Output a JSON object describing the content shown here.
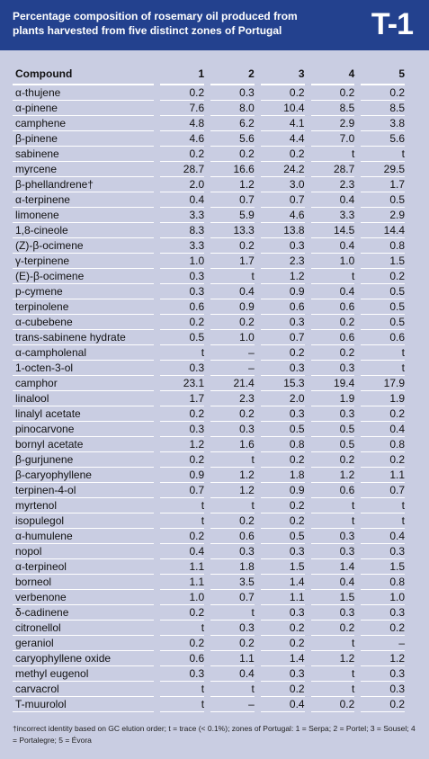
{
  "header": {
    "title": "Percentage composition of rosemary oil produced from plants harvested from five distinct zones of Portugal",
    "badge": "T-1"
  },
  "table": {
    "columns": [
      "Compound",
      "1",
      "2",
      "3",
      "4",
      "5"
    ],
    "rows": [
      [
        "α-thujene",
        "0.2",
        "0.3",
        "0.2",
        "0.2",
        "0.2"
      ],
      [
        "α-pinene",
        "7.6",
        "8.0",
        "10.4",
        "8.5",
        "8.5"
      ],
      [
        "camphene",
        "4.8",
        "6.2",
        "4.1",
        "2.9",
        "3.8"
      ],
      [
        "β-pinene",
        "4.6",
        "5.6",
        "4.4",
        "7.0",
        "5.6"
      ],
      [
        "sabinene",
        "0.2",
        "0.2",
        "0.2",
        "t",
        "t"
      ],
      [
        "myrcene",
        "28.7",
        "16.6",
        "24.2",
        "28.7",
        "29.5"
      ],
      [
        "β-phellandrene†",
        "2.0",
        "1.2",
        "3.0",
        "2.3",
        "1.7"
      ],
      [
        "α-terpinene",
        "0.4",
        "0.7",
        "0.7",
        "0.4",
        "0.5"
      ],
      [
        "limonene",
        "3.3",
        "5.9",
        "4.6",
        "3.3",
        "2.9"
      ],
      [
        "1,8-cineole",
        "8.3",
        "13.3",
        "13.8",
        "14.5",
        "14.4"
      ],
      [
        "(Z)-β-ocimene",
        "3.3",
        "0.2",
        "0.3",
        "0.4",
        "0.8"
      ],
      [
        "γ-terpinene",
        "1.0",
        "1.7",
        "2.3",
        "1.0",
        "1.5"
      ],
      [
        "(E)-β-ocimene",
        "0.3",
        "t",
        "1.2",
        "t",
        "0.2"
      ],
      [
        "p-cymene",
        "0.3",
        "0.4",
        "0.9",
        "0.4",
        "0.5"
      ],
      [
        "terpinolene",
        "0.6",
        "0.9",
        "0.6",
        "0.6",
        "0.5"
      ],
      [
        "α-cubebene",
        "0.2",
        "0.2",
        "0.3",
        "0.2",
        "0.5"
      ],
      [
        "trans-sabinene hydrate",
        "0.5",
        "1.0",
        "0.7",
        "0.6",
        "0.6"
      ],
      [
        "α-campholenal",
        "t",
        "–",
        "0.2",
        "0.2",
        "t"
      ],
      [
        "1-octen-3-ol",
        "0.3",
        "–",
        "0.3",
        "0.3",
        "t"
      ],
      [
        "camphor",
        "23.1",
        "21.4",
        "15.3",
        "19.4",
        "17.9"
      ],
      [
        "linalool",
        "1.7",
        "2.3",
        "2.0",
        "1.9",
        "1.9"
      ],
      [
        "linalyl acetate",
        "0.2",
        "0.2",
        "0.3",
        "0.3",
        "0.2"
      ],
      [
        "pinocarvone",
        "0.3",
        "0.3",
        "0.5",
        "0.5",
        "0.4"
      ],
      [
        "bornyl acetate",
        "1.2",
        "1.6",
        "0.8",
        "0.5",
        "0.8"
      ],
      [
        "β-gurjunene",
        "0.2",
        "t",
        "0.2",
        "0.2",
        "0.2"
      ],
      [
        "β-caryophyllene",
        "0.9",
        "1.2",
        "1.8",
        "1.2",
        "1.1"
      ],
      [
        "terpinen-4-ol",
        "0.7",
        "1.2",
        "0.9",
        "0.6",
        "0.7"
      ],
      [
        "myrtenol",
        "t",
        "t",
        "0.2",
        "t",
        "t"
      ],
      [
        "isopulegol",
        "t",
        "0.2",
        "0.2",
        "t",
        "t"
      ],
      [
        "α-humulene",
        "0.2",
        "0.6",
        "0.5",
        "0.3",
        "0.4"
      ],
      [
        "nopol",
        "0.4",
        "0.3",
        "0.3",
        "0.3",
        "0.3"
      ],
      [
        "α-terpineol",
        "1.1",
        "1.8",
        "1.5",
        "1.4",
        "1.5"
      ],
      [
        "borneol",
        "1.1",
        "3.5",
        "1.4",
        "0.4",
        "0.8"
      ],
      [
        "verbenone",
        "1.0",
        "0.7",
        "1.1",
        "1.5",
        "1.0"
      ],
      [
        "δ-cadinene",
        "0.2",
        "t",
        "0.3",
        "0.3",
        "0.3"
      ],
      [
        "citronellol",
        "t",
        "0.3",
        "0.2",
        "0.2",
        "0.2"
      ],
      [
        "geraniol",
        "0.2",
        "0.2",
        "0.2",
        "t",
        "–"
      ],
      [
        "caryophyllene oxide",
        "0.6",
        "1.1",
        "1.4",
        "1.2",
        "1.2"
      ],
      [
        "methyl eugenol",
        "0.3",
        "0.4",
        "0.3",
        "t",
        "0.3"
      ],
      [
        "carvacrol",
        "t",
        "t",
        "0.2",
        "t",
        "0.3"
      ],
      [
        "T-muurolol",
        "t",
        "–",
        "0.4",
        "0.2",
        "0.2"
      ]
    ]
  },
  "footnote": "†incorrect identity based on GC elution order; t = trace (< 0.1%); zones of Portugal: 1 = Serpa; 2 = Portel; 3 = Sousel; 4 = Portalegre; 5 = Évora"
}
